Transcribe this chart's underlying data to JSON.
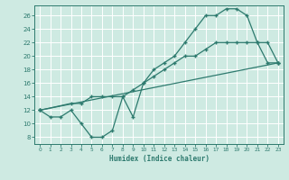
{
  "xlabel": "Humidex (Indice chaleur)",
  "background_color": "#ceeae2",
  "line_color": "#2d7a6e",
  "xlim": [
    -0.5,
    23.5
  ],
  "ylim": [
    7.0,
    27.5
  ],
  "xticks": [
    0,
    1,
    2,
    3,
    4,
    5,
    6,
    7,
    8,
    9,
    10,
    11,
    12,
    13,
    14,
    15,
    16,
    17,
    18,
    19,
    20,
    21,
    22,
    23
  ],
  "yticks": [
    8,
    10,
    12,
    14,
    16,
    18,
    20,
    22,
    24,
    26
  ],
  "line1_x": [
    0,
    1,
    2,
    3,
    4,
    5,
    6,
    7,
    8,
    9,
    10,
    11,
    12,
    13,
    14,
    15,
    16,
    17,
    18,
    19,
    20,
    21,
    22,
    23
  ],
  "line1_y": [
    12,
    11,
    11,
    12,
    10,
    8,
    8,
    9,
    14,
    11,
    16,
    18,
    19,
    20,
    22,
    24,
    26,
    26,
    27,
    27,
    26,
    22,
    19,
    19
  ],
  "line2_x": [
    0,
    3,
    4,
    5,
    6,
    7,
    8,
    9,
    10,
    11,
    12,
    13,
    14,
    15,
    16,
    17,
    18,
    19,
    20,
    21,
    22,
    23
  ],
  "line2_y": [
    12,
    13,
    13,
    14,
    14,
    14,
    14,
    15,
    16,
    17,
    18,
    19,
    20,
    20,
    21,
    22,
    22,
    22,
    22,
    22,
    22,
    19
  ],
  "line3_x": [
    0,
    23
  ],
  "line3_y": [
    12,
    19
  ]
}
